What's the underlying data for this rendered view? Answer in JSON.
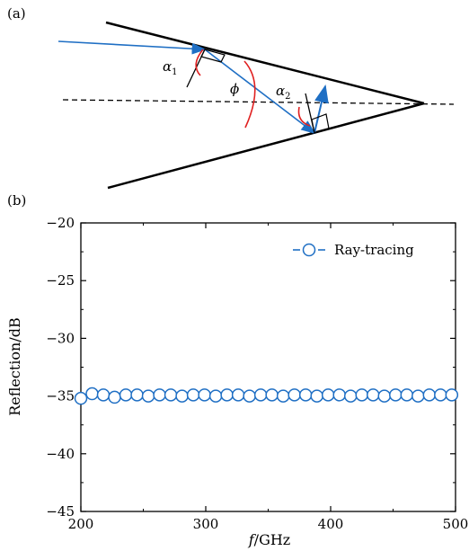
{
  "panel_a": {
    "label": "(a)",
    "angle_labels": {
      "alpha1": "α",
      "alpha1_sub": "1",
      "phi": "ϕ",
      "alpha2": "α",
      "alpha2_sub": "2"
    }
  },
  "panel_b": {
    "label": "(b)"
  },
  "chart_data": {
    "type": "scatter",
    "xlabel_italic": "f",
    "xlabel_rest": "/GHz",
    "ylabel": "Reflection/dB",
    "xlim": [
      200,
      500
    ],
    "ylim": [
      -45,
      -20
    ],
    "xticks": [
      200,
      300,
      400,
      500
    ],
    "yticks": [
      -20,
      -25,
      -30,
      -35,
      -40,
      -45
    ],
    "ytick_labels": [
      "−20",
      "−25",
      "−30",
      "−35",
      "−40",
      "−45"
    ],
    "legend_position": "top-right",
    "series": [
      {
        "name": "Ray-tracing",
        "color": "#1f6fc4",
        "marker": "open-circle",
        "x": [
          200,
          209,
          218,
          227,
          236,
          245,
          254,
          263,
          272,
          281,
          290,
          299,
          308,
          317,
          326,
          335,
          344,
          353,
          362,
          371,
          380,
          389,
          398,
          407,
          416,
          425,
          434,
          443,
          452,
          461,
          470,
          479,
          488,
          497
        ],
        "y": [
          -35.2,
          -34.8,
          -34.9,
          -35.1,
          -34.9,
          -34.9,
          -35.0,
          -34.9,
          -34.9,
          -35.0,
          -34.9,
          -34.9,
          -35.0,
          -34.9,
          -34.9,
          -35.0,
          -34.9,
          -34.9,
          -35.0,
          -34.9,
          -34.9,
          -35.0,
          -34.9,
          -34.9,
          -35.0,
          -34.9,
          -34.9,
          -35.0,
          -34.9,
          -34.9,
          -35.0,
          -34.9,
          -34.9,
          -34.9
        ]
      }
    ]
  }
}
